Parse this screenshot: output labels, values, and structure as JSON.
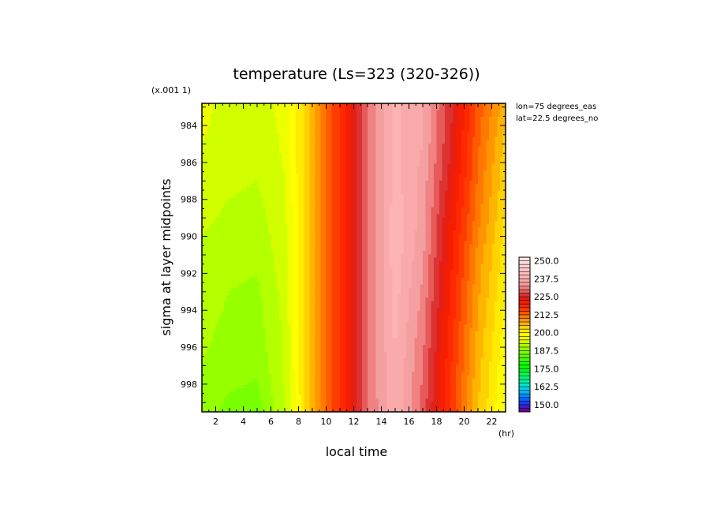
{
  "chart_data": {
    "type": "heatmap",
    "title": "temperature (Ls=323 (320-326))",
    "xlabel": "local time",
    "x_unit": "(hr)",
    "ylabel": "sigma at layer midpoints",
    "y_multiplier": "(x.001 1)",
    "annotations": [
      "lon=75 degrees_eas",
      "lat=22.5 degrees_no"
    ],
    "x_ticks": [
      "2",
      "4",
      "6",
      "8",
      "10",
      "12",
      "14",
      "16",
      "18",
      "20",
      "22"
    ],
    "y_ticks": [
      "984",
      "986",
      "988",
      "990",
      "992",
      "994",
      "996",
      "998"
    ],
    "xlim": [
      1,
      23
    ],
    "ylim": [
      999.5,
      982.8
    ],
    "x": [
      1,
      3,
      5,
      7,
      9,
      11,
      13,
      15,
      17,
      19,
      21,
      23
    ],
    "y": [
      983,
      985,
      987,
      989,
      991,
      993,
      995,
      997,
      999.5
    ],
    "z": [
      [
        196,
        193.5,
        193.5,
        196,
        206,
        218,
        230,
        238,
        235,
        226,
        214,
        206
      ],
      [
        195,
        193.5,
        193,
        195.5,
        206,
        218,
        230,
        238,
        235,
        225,
        213,
        204
      ],
      [
        194,
        193,
        192.5,
        195,
        206,
        218,
        230,
        238.5,
        234,
        224,
        212,
        203
      ],
      [
        193,
        192,
        191.5,
        194.5,
        206,
        218,
        230,
        239,
        234,
        222,
        211,
        202
      ],
      [
        192,
        191,
        190.5,
        194,
        206,
        218,
        230,
        239,
        233,
        221,
        209,
        201
      ],
      [
        191,
        190,
        189.5,
        193.5,
        206,
        218,
        230,
        238.5,
        232,
        220,
        208,
        200
      ],
      [
        190.5,
        189.5,
        189,
        193,
        206,
        218,
        230,
        238,
        231,
        219,
        207,
        199
      ],
      [
        190,
        189,
        188,
        193,
        206,
        218,
        230,
        237.5,
        230,
        218,
        206,
        198
      ],
      [
        189,
        186.5,
        186,
        192.5,
        206,
        218,
        230,
        237,
        229,
        217,
        205,
        197
      ]
    ],
    "colorbar": {
      "labels": [
        "250.0",
        "237.5",
        "225.0",
        "212.5",
        "200.0",
        "187.5",
        "175.0",
        "162.5",
        "150.0"
      ],
      "min": 145,
      "max": 252.5,
      "step": 2.5,
      "colors": [
        "#6a00a8",
        "#3c1ec8",
        "#1e3cff",
        "#0064ff",
        "#008cff",
        "#00b4ff",
        "#00d2f0",
        "#00e6c8",
        "#00f0a0",
        "#00fa78",
        "#00ff50",
        "#00ff28",
        "#00ff00",
        "#1eff00",
        "#3cff00",
        "#5aff00",
        "#78ff00",
        "#96ff00",
        "#b4ff00",
        "#d2ff00",
        "#f0ff00",
        "#ffff00",
        "#ffeb00",
        "#ffd200",
        "#ffb400",
        "#ff9600",
        "#ff7800",
        "#ff5a00",
        "#ff3c00",
        "#ff2800",
        "#f51e00",
        "#e61e14",
        "#dc3232",
        "#e65a5a",
        "#f08282",
        "#f5a0a0",
        "#faaaaa",
        "#ffb4b4",
        "#ffbebe",
        "#ffc8c8",
        "#ffd2d2",
        "#ffdcdc",
        "#ffe6e6"
      ]
    }
  }
}
